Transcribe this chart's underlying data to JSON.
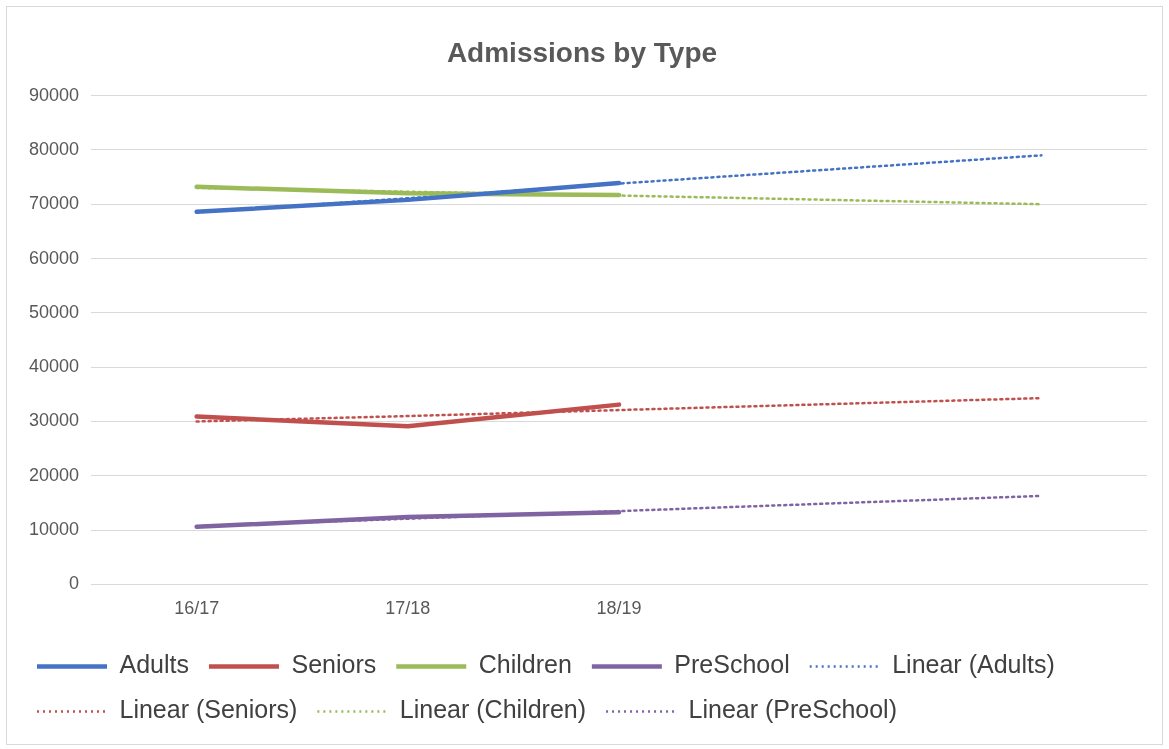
{
  "chart_data": {
    "type": "line",
    "title": "Admissions by Type",
    "categories": [
      "16/17",
      "17/18",
      "18/19",
      null,
      null
    ],
    "ylim": [
      0,
      90000
    ],
    "yticks": [
      0,
      10000,
      20000,
      30000,
      40000,
      50000,
      60000,
      70000,
      80000,
      90000
    ],
    "grid": "y",
    "legend": "bottom",
    "marker": "none",
    "series": [
      {
        "name": "Adults",
        "color": "#4472c4",
        "values": [
          68600,
          70800,
          73900,
          null,
          null
        ]
      },
      {
        "name": "Seniors",
        "color": "#c0504d",
        "values": [
          30900,
          29100,
          33100,
          null,
          null
        ]
      },
      {
        "name": "Children",
        "color": "#9bbb59",
        "values": [
          73200,
          72000,
          71700,
          null,
          null
        ]
      },
      {
        "name": "PreSchool",
        "color": "#8064a2",
        "values": [
          10600,
          12400,
          13300,
          null,
          null
        ]
      },
      {
        "name": "Linear (Adults)",
        "color": "#4472c4",
        "type": "line",
        "line_style": "dotted",
        "values": [
          68500,
          71100,
          73800,
          76400,
          79000
        ]
      },
      {
        "name": "Linear (Seniors)",
        "color": "#c0504d",
        "type": "line",
        "line_style": "dotted",
        "values": [
          30000,
          31000,
          32100,
          33200,
          34300
        ]
      },
      {
        "name": "Linear (Children)",
        "color": "#9bbb59",
        "type": "line",
        "line_style": "dotted",
        "values": [
          73000,
          72300,
          71600,
          70800,
          70000
        ]
      },
      {
        "name": "Linear (PreSchool)",
        "color": "#8064a2",
        "type": "line",
        "line_style": "dotted",
        "values": [
          10700,
          12100,
          13500,
          14900,
          16300
        ]
      }
    ]
  }
}
